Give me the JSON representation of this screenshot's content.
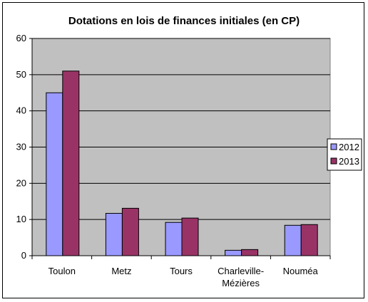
{
  "chart_data": {
    "type": "bar",
    "title": "Dotations en lois de finances initiales (en CP)",
    "categories": [
      [
        "Toulon"
      ],
      [
        "Metz"
      ],
      [
        "Tours"
      ],
      [
        "Charleville-",
        "Mézières"
      ],
      [
        "Nouméa"
      ]
    ],
    "series": [
      {
        "name": "2012",
        "values": [
          45,
          11.7,
          9.2,
          1.5,
          8.4
        ],
        "color": "#9999ff"
      },
      {
        "name": "2013",
        "values": [
          51,
          13.1,
          10.4,
          1.7,
          8.6
        ],
        "color": "#993366"
      }
    ],
    "yticks": [
      "0",
      "10",
      "20",
      "30",
      "40",
      "50",
      "60"
    ],
    "ylim": [
      0,
      60
    ],
    "grid": true,
    "legend_position": "right",
    "plot_background": "#c0c0c0"
  }
}
